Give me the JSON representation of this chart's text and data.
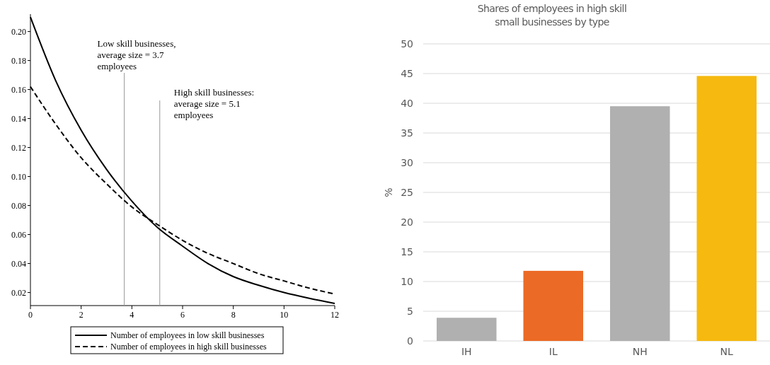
{
  "chart_data": [
    {
      "type": "line",
      "x": [
        0,
        1,
        2,
        3,
        4,
        5,
        6,
        7,
        8,
        9,
        10,
        11,
        12
      ],
      "xlim": [
        0,
        12
      ],
      "xticks": [
        0,
        2,
        4,
        6,
        8,
        10,
        12
      ],
      "ylim": [
        0.011,
        0.212
      ],
      "yticks": [
        {
          "value": 0.02,
          "label": "0.02"
        },
        {
          "value": 0.04,
          "label": "0.04"
        },
        {
          "value": 0.06,
          "label": "0.06"
        },
        {
          "value": 0.08,
          "label": "0.08"
        },
        {
          "value": 0.1,
          "label": "0.10"
        },
        {
          "value": 0.12,
          "label": "0.12"
        },
        {
          "value": 0.14,
          "label": "0.14"
        },
        {
          "value": 0.16,
          "label": "0.16"
        },
        {
          "value": 0.18,
          "label": "0.18"
        },
        {
          "value": 0.2,
          "label": "0.20"
        }
      ],
      "series": [
        {
          "name": "Number of employees in low skill businesses",
          "color": "#000000",
          "line_style": "solid",
          "values": [
            0.21,
            0.166,
            0.132,
            0.105,
            0.083,
            0.065,
            0.052,
            0.04,
            0.031,
            0.025,
            0.02,
            0.016,
            0.0125
          ]
        },
        {
          "name": "Number of employees in high skill businesses",
          "color": "#000000",
          "line_style": "dashed",
          "values": [
            0.162,
            0.136,
            0.113,
            0.095,
            0.079,
            0.067,
            0.056,
            0.047,
            0.04,
            0.033,
            0.028,
            0.023,
            0.019
          ]
        }
      ],
      "ref_lines": [
        {
          "axis": "x",
          "value": 3.7,
          "label": "Low skill businesses, average size = 3.7 employees",
          "color": "#999999"
        },
        {
          "axis": "x",
          "value": 5.1,
          "label": "High skill businesses: average size = 5.1 employees",
          "color": "#999999"
        }
      ],
      "grid": false,
      "legend": "bottom"
    },
    {
      "type": "bar",
      "title": "Shares of employees in high skill small businesses by type",
      "ylabel": "%",
      "categories": [
        "IH",
        "IL",
        "NH",
        "NL"
      ],
      "values": [
        3.9,
        11.8,
        39.5,
        44.6
      ],
      "colors": [
        "#b0b0b0",
        "#eb6a25",
        "#b0b0b0",
        "#f6b90f"
      ],
      "ylim": [
        0,
        50
      ],
      "yticks": [
        0,
        5,
        10,
        15,
        20,
        25,
        30,
        35,
        40,
        45,
        50
      ],
      "grid": "y"
    }
  ]
}
